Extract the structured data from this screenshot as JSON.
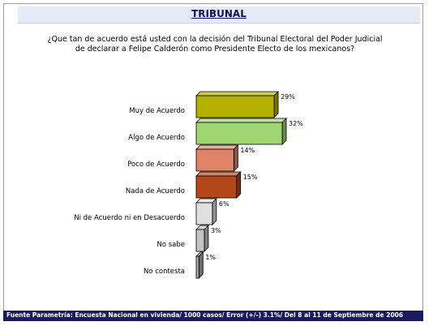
{
  "header": {
    "title": "TRIBUNAL"
  },
  "question": {
    "line1": "¿Que tan de acuerdo está usted con la decisión del Tribunal Electoral del Poder Judicial",
    "line2": "de declarar a Felipe Calderón como Presidente Electo de los mexicanos?"
  },
  "footer": {
    "source": "Fuente Parametría: Encuesta Nacional en vivienda/ 1000 casos/ Error (+/-) 3.1%/ Del 8 al 11 de Septiembre de 2006"
  },
  "chart_data": {
    "type": "bar",
    "orientation": "horizontal",
    "style": "3d",
    "categories": [
      "Muy de Acuerdo",
      "Algo de Acuerdo",
      "Poco de Acuerdo",
      "Nada de Acuerdo",
      "Ni de Acuerdo ni en Desacuerdo",
      "No sabe",
      "No contesta"
    ],
    "values": [
      29,
      32,
      14,
      15,
      6,
      3,
      1
    ],
    "value_labels": [
      "29%",
      "32%",
      "14%",
      "15%",
      "6%",
      "3%",
      "1%"
    ],
    "unit": "%",
    "colors": [
      "#b4b000",
      "#a0d470",
      "#e08468",
      "#b44818",
      "#e0e0e0",
      "#c4c4c4",
      "#a8a8a8"
    ],
    "xlim": [
      0,
      32
    ]
  }
}
